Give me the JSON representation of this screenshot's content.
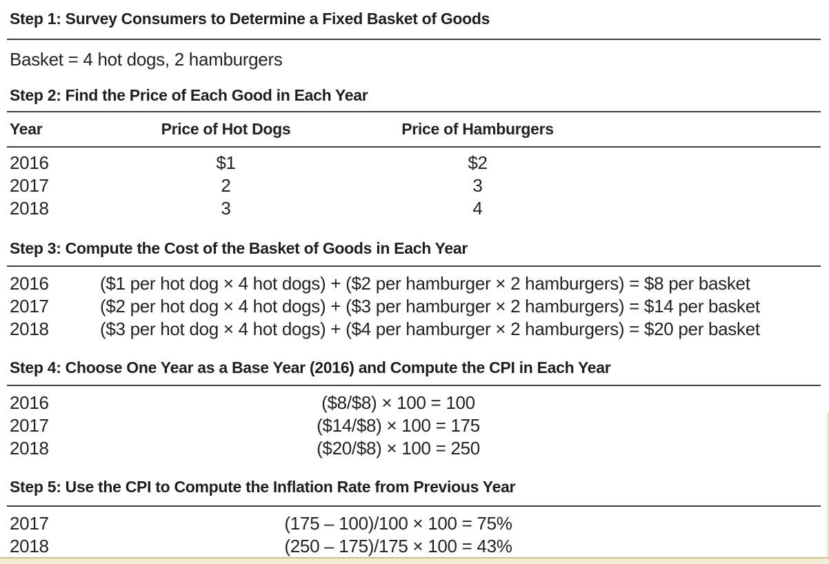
{
  "colors": {
    "rule": "#3d3d3d",
    "text": "#222222",
    "band_fill": "#f2edd2",
    "band_edge": "#c9bf93"
  },
  "step1": {
    "heading": "Step 1: Survey Consumers to Determine a Fixed Basket of Goods",
    "basket_line": "Basket = 4 hot dogs, 2 hamburgers"
  },
  "step2": {
    "heading": "Step 2: Find the Price of Each Good in Each Year",
    "table": {
      "headers": [
        "Year",
        "Price of Hot Dogs",
        "Price of Hamburgers"
      ],
      "rows": [
        {
          "year": "2016",
          "hot_dogs": "$1",
          "hamburgers": "$2"
        },
        {
          "year": "2017",
          "hot_dogs": "2",
          "hamburgers": "3"
        },
        {
          "year": "2018",
          "hot_dogs": "3",
          "hamburgers": "4"
        }
      ]
    }
  },
  "step3": {
    "heading": "Step 3: Compute the Cost of the Basket of Goods in Each Year",
    "rows": [
      {
        "year": "2016",
        "formula": "($1 per hot dog × 4 hot dogs) + ($2 per hamburger × 2 hamburgers) = $8 per basket"
      },
      {
        "year": "2017",
        "formula": "($2 per hot dog × 4 hot dogs) + ($3 per hamburger × 2 hamburgers) = $14 per basket"
      },
      {
        "year": "2018",
        "formula": "($3 per hot dog × 4 hot dogs) + ($4 per hamburger × 2 hamburgers) = $20 per basket"
      }
    ]
  },
  "step4": {
    "heading": "Step 4: Choose One Year as a Base Year (2016) and Compute the CPI in Each Year",
    "rows": [
      {
        "year": "2016",
        "formula": "($8/$8) × 100 = 100"
      },
      {
        "year": "2017",
        "formula": "($14/$8) × 100 = 175"
      },
      {
        "year": "2018",
        "formula": "($20/$8) × 100 = 250"
      }
    ]
  },
  "step5": {
    "heading": "Step 5: Use the CPI to Compute the Inflation Rate from Previous Year",
    "rows": [
      {
        "year": "2017",
        "formula": "(175 – 100)/100 × 100 = 75%"
      },
      {
        "year": "2018",
        "formula": "(250 – 175)/175 × 100 = 43%"
      }
    ]
  }
}
